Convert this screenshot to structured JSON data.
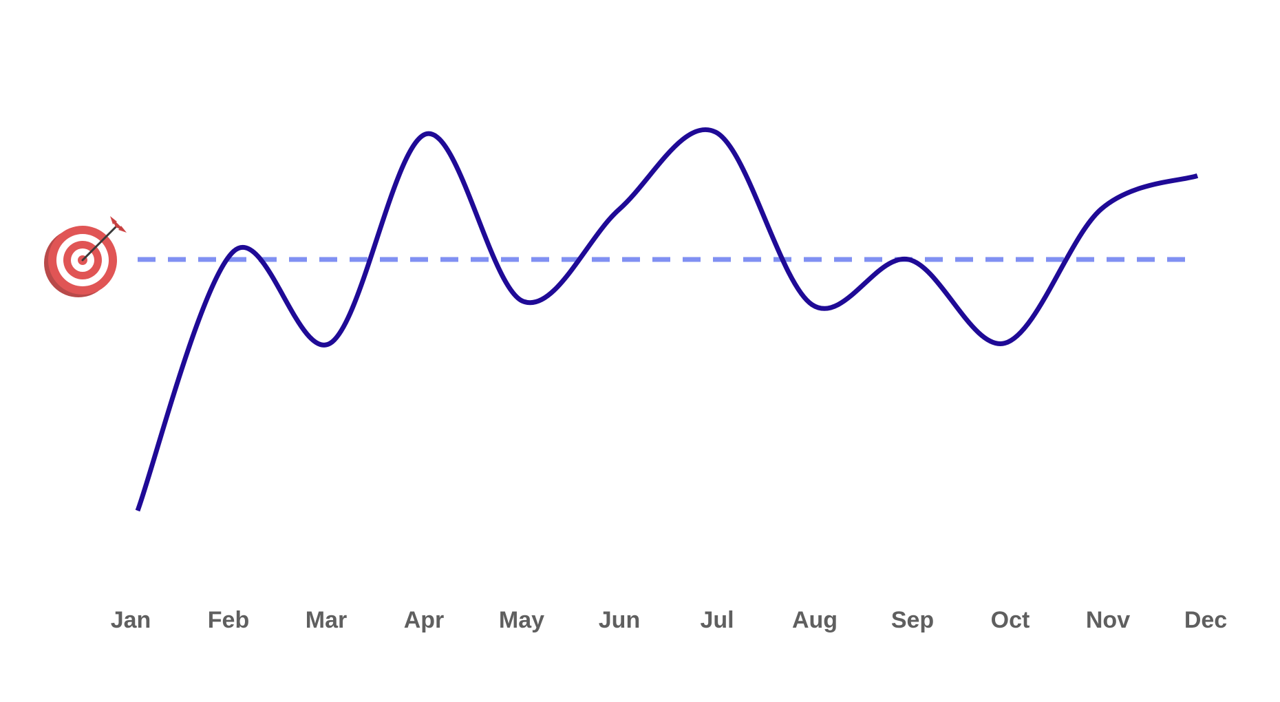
{
  "chart_data": {
    "type": "line",
    "categories": [
      "Jan",
      "Feb",
      "Mar",
      "Apr",
      "May",
      "Jun",
      "Jul",
      "Aug",
      "Sep",
      "Oct",
      "Nov",
      "Dec"
    ],
    "series": [
      {
        "values": [
          -1.5,
          0.05,
          -0.5,
          0.75,
          -0.25,
          0.3,
          0.76,
          -0.27,
          0.0,
          -0.5,
          0.3,
          0.5
        ],
        "color": "#1f0a96"
      }
    ],
    "target": {
      "value": 0,
      "color": "#8090f2",
      "style": "dashed",
      "icon": "target-icon"
    },
    "colors": {
      "tick_label": "#5f5f5f",
      "target_red": "#e05555",
      "target_white": "#ffffff"
    },
    "title": "",
    "xlabel": "",
    "ylabel": "",
    "ylim": [
      -1.5,
      0.76
    ],
    "grid": false,
    "curve": "smooth"
  }
}
